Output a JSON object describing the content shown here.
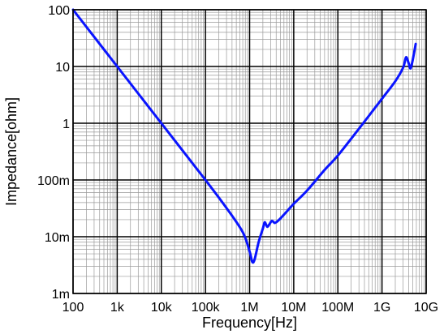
{
  "chart_data": {
    "type": "line",
    "title": "",
    "xlabel": "Frequency[Hz]",
    "ylabel": "Impedance[ohm]",
    "x_scale": "log",
    "y_scale": "log",
    "xlim": [
      100,
      10000000000
    ],
    "ylim": [
      0.001,
      100
    ],
    "x_ticks": [
      {
        "value": 100,
        "label": "100"
      },
      {
        "value": 1000,
        "label": "1k"
      },
      {
        "value": 10000,
        "label": "10k"
      },
      {
        "value": 100000,
        "label": "100k"
      },
      {
        "value": 1000000,
        "label": "1M"
      },
      {
        "value": 10000000,
        "label": "10M"
      },
      {
        "value": 100000000,
        "label": "100M"
      },
      {
        "value": 1000000000,
        "label": "1G"
      },
      {
        "value": 10000000000,
        "label": "10G"
      }
    ],
    "y_ticks": [
      {
        "value": 0.001,
        "label": "1m"
      },
      {
        "value": 0.01,
        "label": "10m"
      },
      {
        "value": 0.1,
        "label": "100m"
      },
      {
        "value": 1,
        "label": "1"
      },
      {
        "value": 10,
        "label": "10"
      },
      {
        "value": 100,
        "label": "100"
      }
    ],
    "grid": true,
    "minor_grid": true,
    "colors": {
      "series": "#0a14ff",
      "major_grid": "#000000",
      "minor_grid": "#9a9a9a"
    },
    "series": [
      {
        "x": [
          100,
          1000,
          10000,
          100000,
          300000,
          700000,
          1000000,
          1150000,
          1300000,
          1600000,
          2000000,
          2200000,
          2500000,
          2800000,
          3200000,
          3700000,
          4200000,
          5000000,
          7000000,
          10000000,
          20000000,
          50000000,
          100000000,
          300000000,
          1000000000,
          2000000000,
          3000000000,
          3500000000,
          4000000000,
          4400000000,
          4800000000,
          5300000000,
          5800000000
        ],
        "y": [
          100,
          10,
          1,
          0.1,
          0.032,
          0.012,
          0.0055,
          0.0036,
          0.004,
          0.008,
          0.014,
          0.018,
          0.015,
          0.0165,
          0.019,
          0.0175,
          0.0185,
          0.021,
          0.028,
          0.038,
          0.065,
          0.15,
          0.27,
          0.8,
          2.7,
          5.5,
          9.5,
          14.5,
          11.5,
          9.2,
          11.5,
          17,
          25
        ]
      }
    ]
  }
}
